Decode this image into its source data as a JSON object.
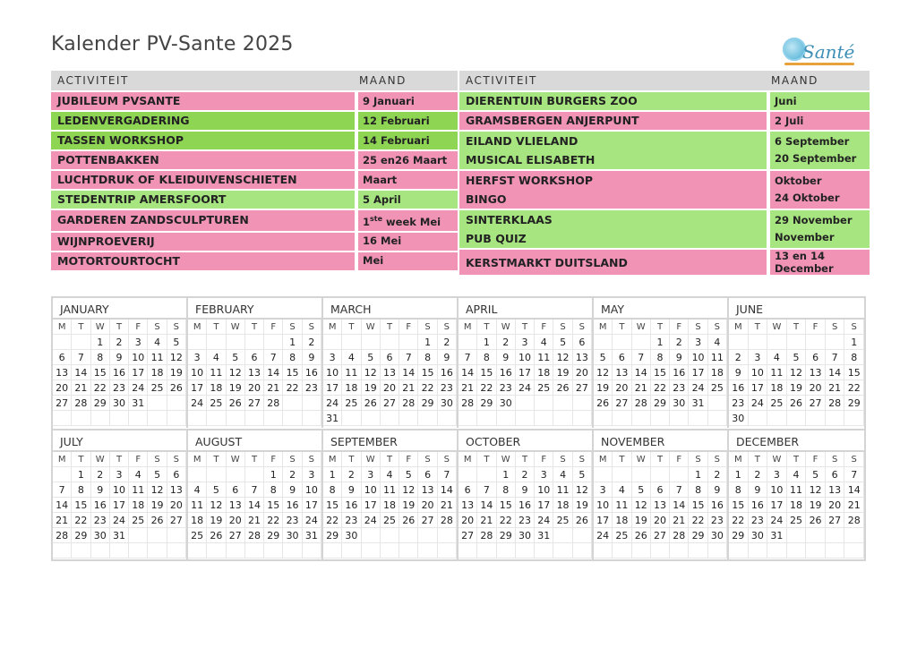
{
  "title": "Kalender PV-Sante 2025",
  "logo_text": "Santé",
  "header": {
    "activity": "ACTIVITEIT",
    "month": "MAAND"
  },
  "left_activities": [
    {
      "lines": [
        "JUBILEUM PVSANTE"
      ],
      "months": [
        "9 Januari"
      ],
      "color": "pink"
    },
    {
      "lines": [
        "LEDENVERGADERING"
      ],
      "months": [
        "12 Februari"
      ],
      "color": "green"
    },
    {
      "lines": [
        "TASSEN WORKSHOP"
      ],
      "months": [
        "14 Februari"
      ],
      "color": "green"
    },
    {
      "lines": [
        "POTTENBAKKEN"
      ],
      "months": [
        "25 en26 Maart"
      ],
      "color": "pink"
    },
    {
      "lines": [
        "LUCHTDRUK OF KLEIDUIVENSCHIETEN"
      ],
      "months": [
        "Maart"
      ],
      "color": "pink"
    },
    {
      "lines": [
        "STEDENTRIP AMERSFOORT"
      ],
      "months": [
        "5 April"
      ],
      "color": "lgreen"
    },
    {
      "lines": [
        "GARDEREN ZANDSCULPTUREN"
      ],
      "months": [
        "1ste week Mei"
      ],
      "color": "pink"
    },
    {
      "lines": [
        "WIJNPROEVERIJ"
      ],
      "months": [
        "16 Mei"
      ],
      "color": "pink"
    },
    {
      "lines": [
        "MOTORTOURTOCHT"
      ],
      "months": [
        "Mei"
      ],
      "color": "pink"
    }
  ],
  "right_activities": [
    {
      "lines": [
        "DIERENTUIN BURGERS ZOO"
      ],
      "months": [
        "Juni"
      ],
      "color": "lgreen"
    },
    {
      "lines": [
        "GRAMSBERGEN ANJERPUNT"
      ],
      "months": [
        "2 Juli"
      ],
      "color": "pink"
    },
    {
      "lines": [
        "EILAND VLIELAND",
        "MUSICAL ELISABETH"
      ],
      "months": [
        "6 September",
        "20 September"
      ],
      "color": "lgreen"
    },
    {
      "lines": [
        "HERFST WORKSHOP",
        "BINGO"
      ],
      "months": [
        "Oktober",
        "24 Oktober"
      ],
      "color": "pink"
    },
    {
      "lines": [
        "SINTERKLAAS",
        "PUB QUIZ"
      ],
      "months": [
        "29 November",
        "November"
      ],
      "color": "lgreen"
    },
    {
      "lines": [
        "KERSTMARKT DUITSLAND"
      ],
      "months": [
        "13 en 14",
        "December"
      ],
      "color": "pink"
    }
  ],
  "weekday_headers": [
    "M",
    "T",
    "W",
    "T",
    "F",
    "S",
    "S"
  ],
  "months": [
    {
      "name": "JANUARY",
      "offset": 2,
      "days": 31
    },
    {
      "name": "FEBRUARY",
      "offset": 5,
      "days": 28
    },
    {
      "name": "MARCH",
      "offset": 5,
      "days": 31
    },
    {
      "name": "APRIL",
      "offset": 1,
      "days": 30
    },
    {
      "name": "MAY",
      "offset": 3,
      "days": 31
    },
    {
      "name": "JUNE",
      "offset": 6,
      "days": 30
    },
    {
      "name": "JULY",
      "offset": 1,
      "days": 31
    },
    {
      "name": "AUGUST",
      "offset": 4,
      "days": 31
    },
    {
      "name": "SEPTEMBER",
      "offset": 0,
      "days": 30
    },
    {
      "name": "OCTOBER",
      "offset": 2,
      "days": 31
    },
    {
      "name": "NOVEMBER",
      "offset": 5,
      "days": 30
    },
    {
      "name": "DECEMBER",
      "offset": 0,
      "days": 31
    }
  ]
}
